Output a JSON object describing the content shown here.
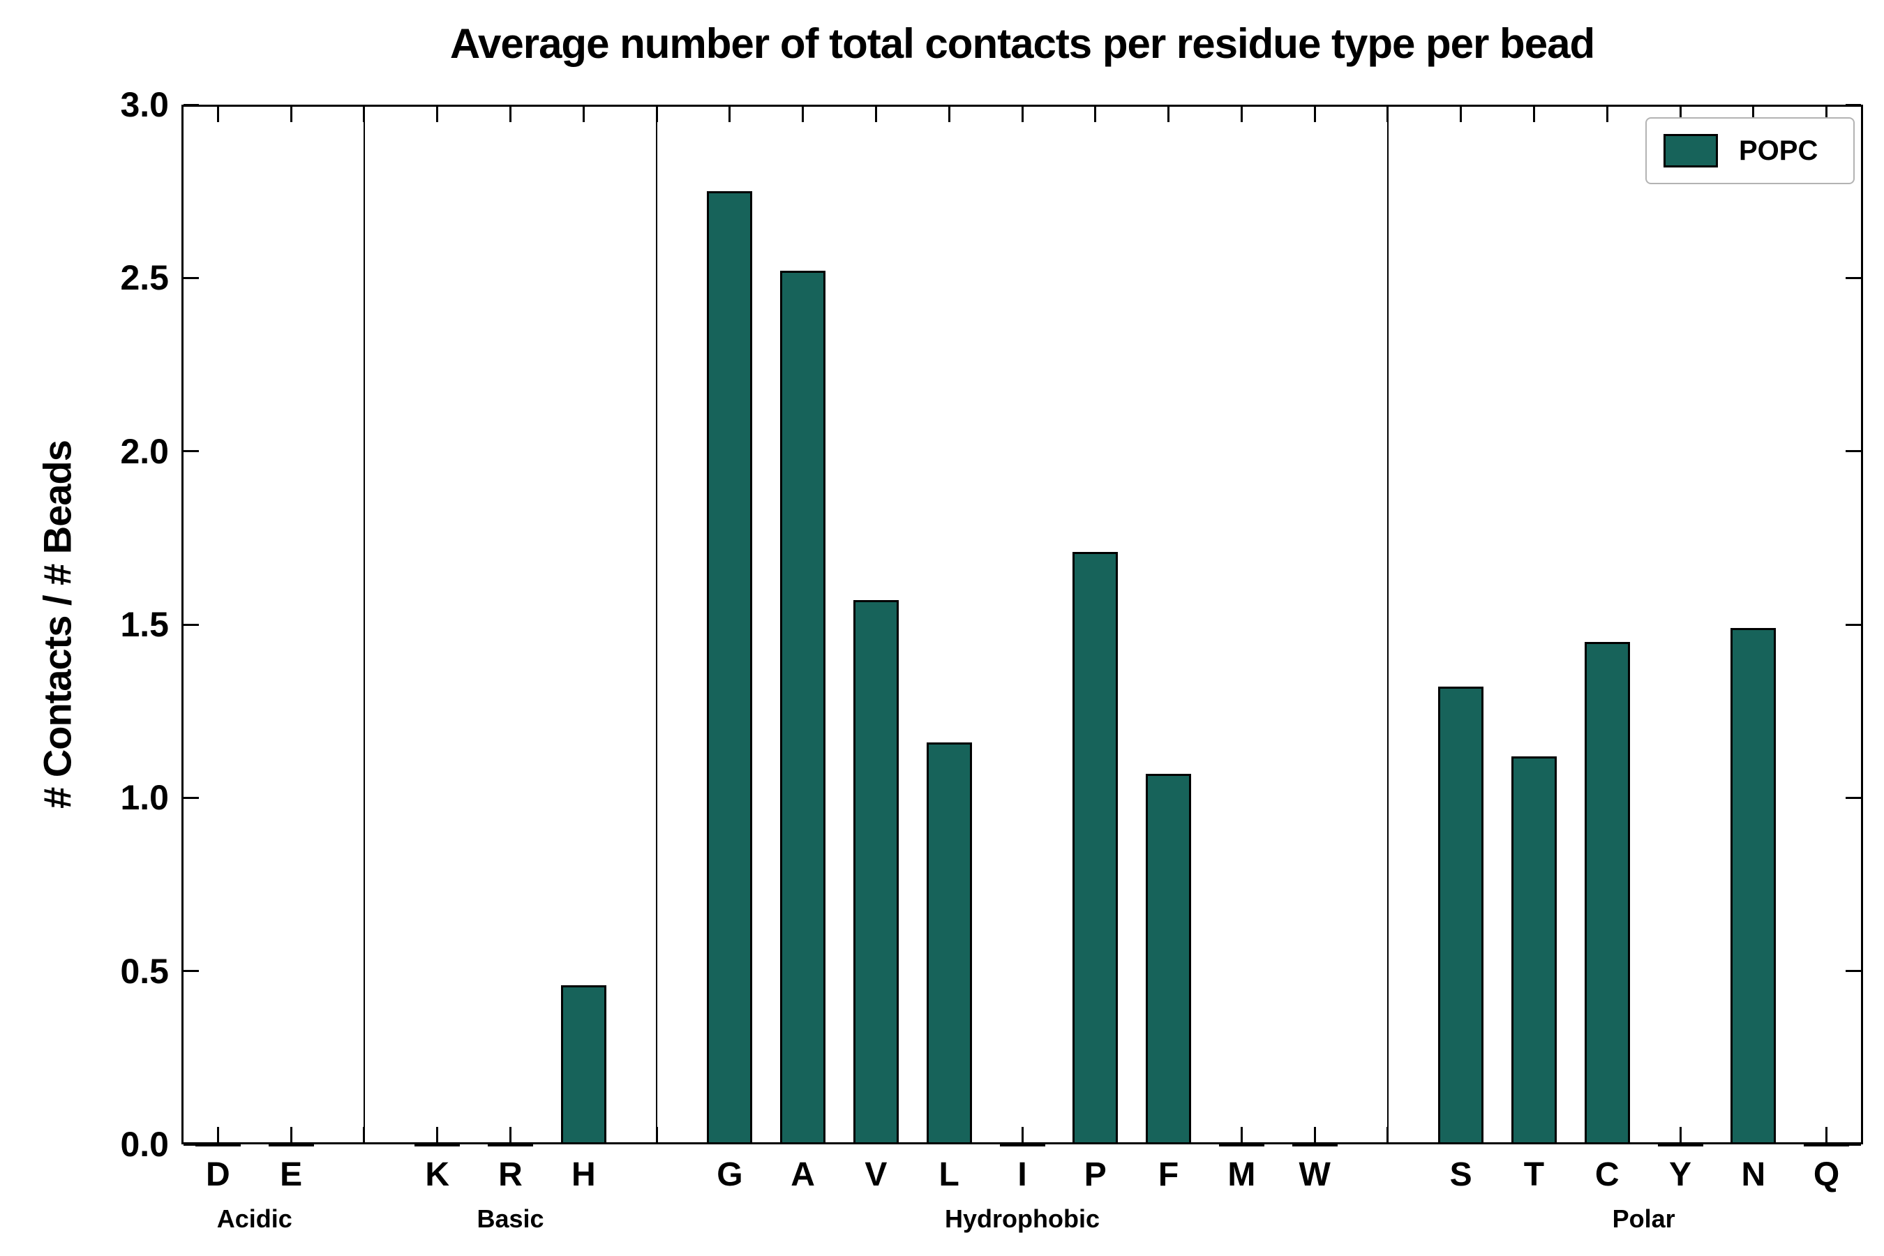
{
  "chart_data": {
    "type": "bar",
    "title": "Average number of total contacts per residue type per bead",
    "ylabel": "# Contacts / # Beads",
    "xlabel": "",
    "ylim": [
      0.0,
      3.0
    ],
    "ytick_labels": [
      "0.0",
      "0.5",
      "1.0",
      "1.5",
      "2.0",
      "2.5",
      "3.0"
    ],
    "grid": false,
    "legend": {
      "label": "POPC",
      "position": "upper right"
    },
    "colors": {
      "bar_fill": "#17635A",
      "bar_edge": "#000000",
      "axis": "#000000",
      "background": "#FFFFFF"
    },
    "groups": [
      {
        "label": "Acidic",
        "residues": [
          "D",
          "E"
        ],
        "values": [
          0.0,
          0.0
        ]
      },
      {
        "label": "Basic",
        "residues": [
          "K",
          "R",
          "H"
        ],
        "values": [
          0.0,
          0.0,
          0.46
        ]
      },
      {
        "label": "Hydrophobic",
        "residues": [
          "G",
          "A",
          "V",
          "L",
          "I",
          "P",
          "F",
          "M",
          "W"
        ],
        "values": [
          2.75,
          2.52,
          1.57,
          1.16,
          0.0,
          1.71,
          1.07,
          0.0,
          0.0
        ]
      },
      {
        "label": "Polar",
        "residues": [
          "S",
          "T",
          "C",
          "Y",
          "N",
          "Q"
        ],
        "values": [
          1.32,
          1.12,
          1.45,
          0.0,
          1.49,
          0.0
        ]
      }
    ]
  }
}
